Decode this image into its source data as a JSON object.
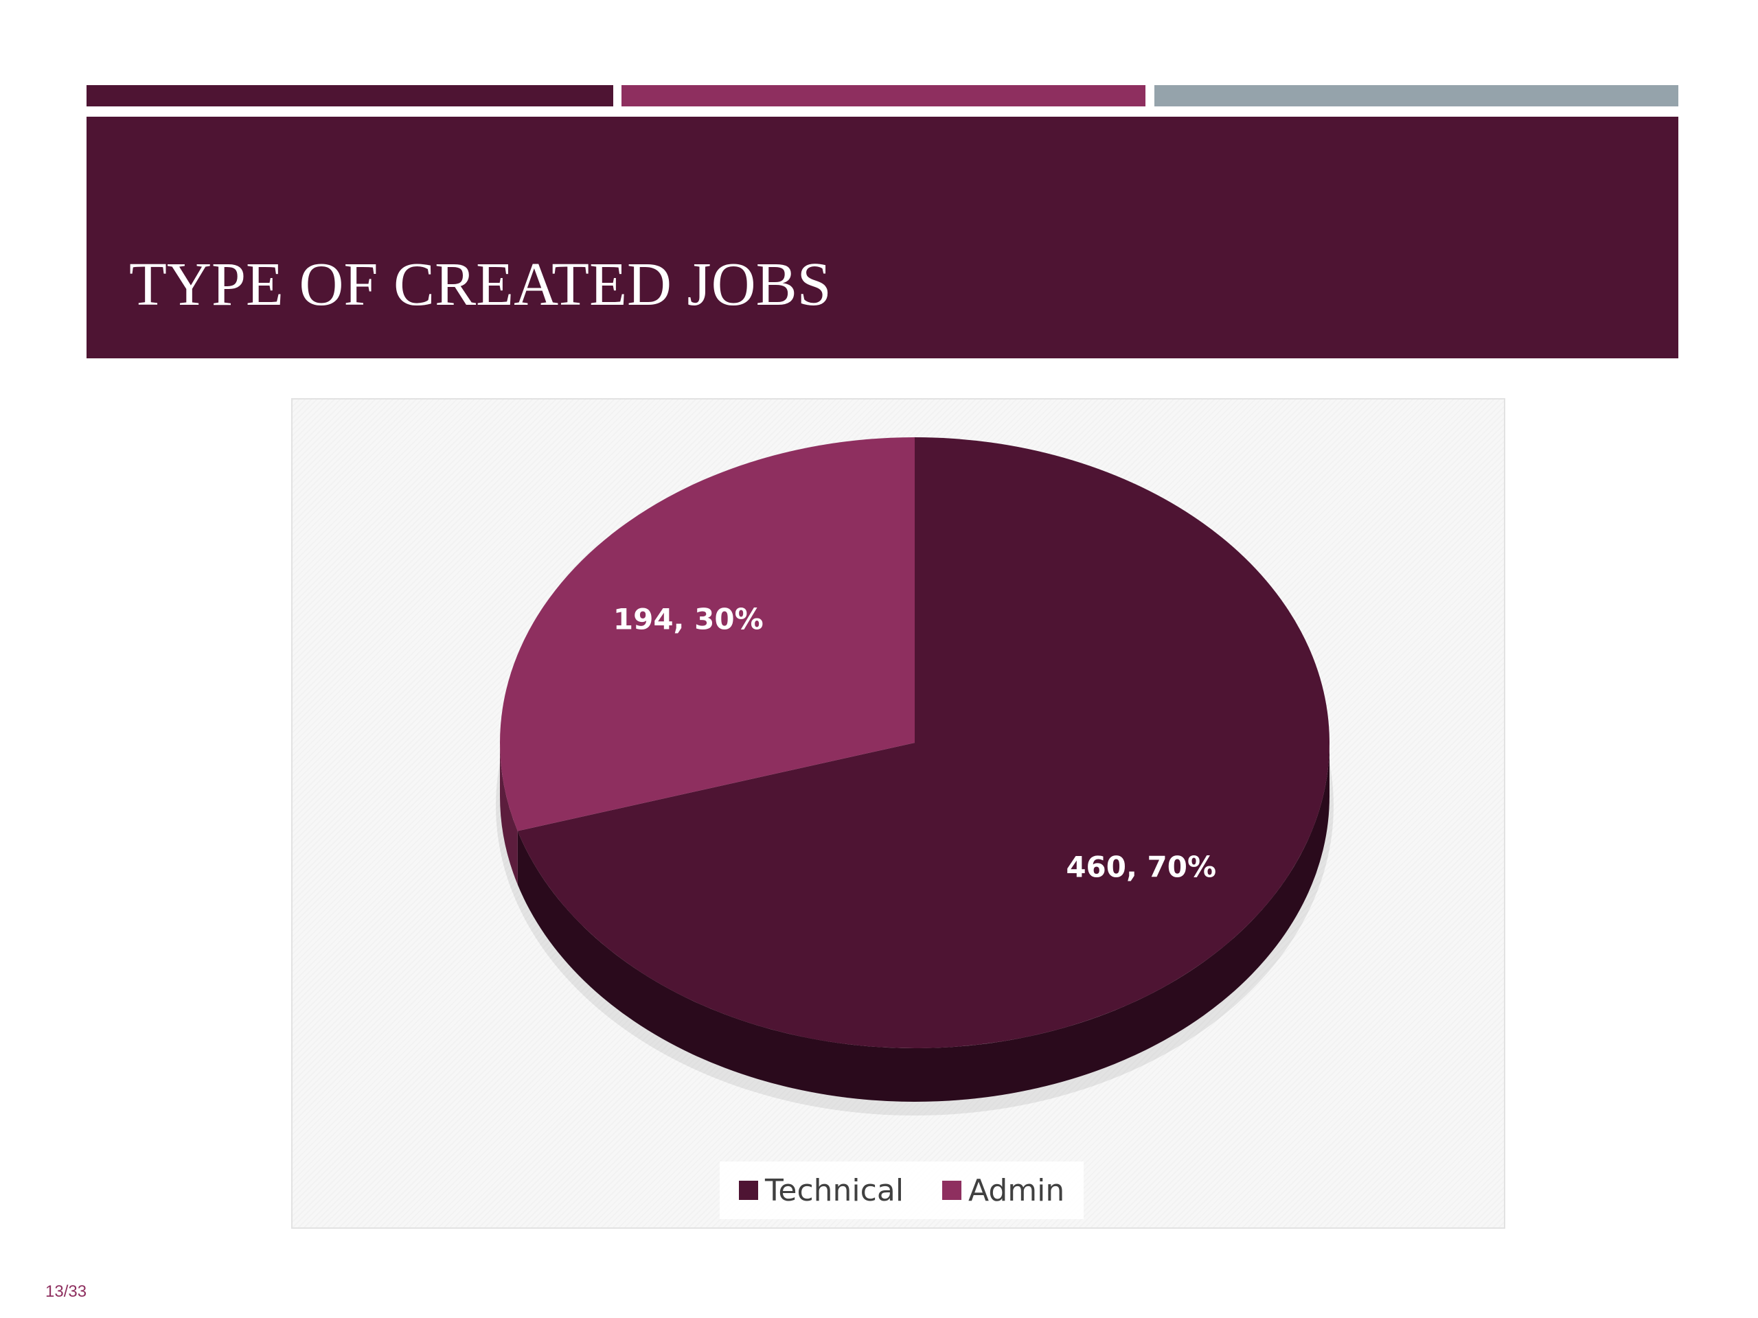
{
  "slide": {
    "title": "TYPE OF CREATED JOBS",
    "page_number": "13/33"
  },
  "colors": {
    "dark": "#4e1433",
    "accent": "#8e2f5f",
    "gray": "#95a3ab",
    "dark_side": "#2a0a1c",
    "accent_side": "#5c1d3d"
  },
  "chart_data": {
    "type": "pie",
    "style": "3d",
    "start_angle_deg": 0,
    "direction": "clockwise",
    "legend_position": "bottom",
    "slices": [
      {
        "label": "Technical",
        "value": 460,
        "percent": 70,
        "data_label": "460, 70%",
        "color": "#4e1433"
      },
      {
        "label": "Admin",
        "value": 194,
        "percent": 30,
        "data_label": "194, 30%",
        "color": "#8e2f5f"
      }
    ],
    "legend": [
      "Technical",
      "Admin"
    ]
  }
}
